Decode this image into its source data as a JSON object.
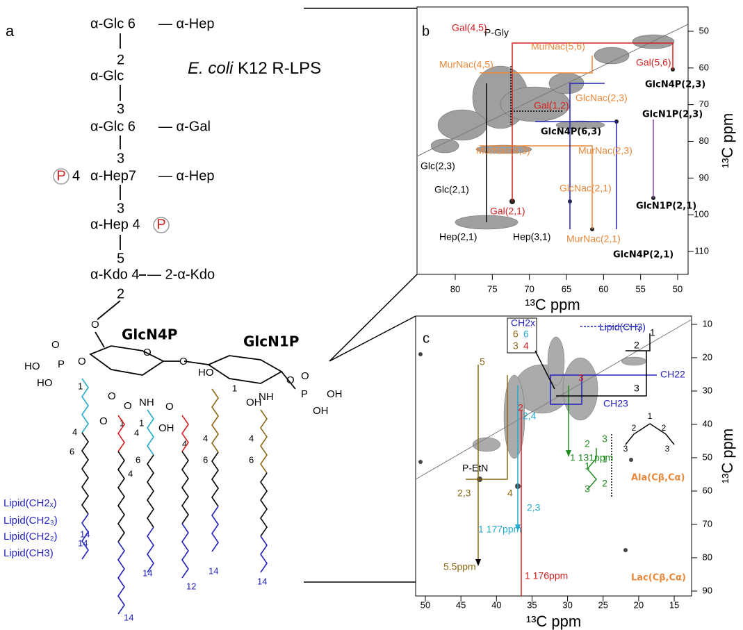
{
  "panel_a": {
    "label": "a",
    "title": {
      "italic": "E. coli",
      "rest": " K12 R-LPS"
    },
    "chain": [
      "α-Glc 6",
      "— α-Hep",
      "2",
      "α-Glc",
      "3",
      "α-Glc 6",
      "— α-Gal",
      "3",
      "P",
      "4",
      "α-Hep7",
      "— α-Hep",
      "3",
      "α-Hep 4",
      "P",
      "5",
      "α-Kdo 4",
      "— 2-α-Kdo",
      "2"
    ],
    "residues": [
      "GlcN4P",
      "GlcN1P"
    ],
    "atoms": [
      "O",
      "O",
      "HO",
      "P",
      "O",
      "HO",
      "O",
      "O",
      "HO",
      "NH",
      "NH",
      "O",
      "P",
      "OH",
      "OH",
      "O",
      "O",
      "O",
      "O",
      "O",
      "OH",
      "OH"
    ],
    "carbons": [
      "1",
      "1",
      "1",
      "1",
      "4",
      "6",
      "4",
      "4",
      "6",
      "4",
      "4",
      "6",
      "4",
      "6"
    ],
    "chain_ends": [
      "14",
      "14",
      "14",
      "12",
      "14",
      "14",
      "14"
    ],
    "lipids": [
      "Lipid(CH2ₓ)",
      "Lipid(CH2₃)",
      "Lipid(CH2₂)",
      "Lipid(CH3)"
    ]
  },
  "panel_b": {
    "label": "b",
    "axis_label": "¹³C ppm",
    "xticks": [
      80,
      75,
      70,
      65,
      60,
      55,
      50
    ],
    "yticks": [
      50,
      60,
      70,
      80,
      90,
      100,
      110
    ],
    "peaks": [
      "P-Gly",
      "Gal(4,5)",
      "MurNac(5,6)",
      "MurNac(4,5)",
      "Gal(5,6)",
      "GlcNac(2,3)",
      "GlcN4P(2,3)",
      "Gal(1,2)",
      "GlcN1P(2,3)",
      "GlcN4P(6,3)",
      "MurNac(4,3)",
      "MurNac(2,3)",
      "Glc(2,3)",
      "Glc(2,1)",
      "GlcNac(2,1)",
      "Gal(2,1)",
      "GlcN1P(2,1)",
      "MurNac(2,1)",
      "Hep(2,1)",
      "Hep(3,1)",
      "GlcN4P(2,1)"
    ]
  },
  "panel_c": {
    "label": "c",
    "axis_label": "¹³C ppm",
    "xticks": [
      50,
      45,
      40,
      35,
      30,
      25,
      20,
      15
    ],
    "yticks": [
      10,
      20,
      30,
      40,
      50,
      60,
      70,
      80,
      90
    ],
    "peaks": [
      "CH2x",
      "6",
      "6",
      "3",
      "4",
      "Lipid(CH3)",
      "1",
      "2",
      "3",
      "CH22",
      "CH23",
      "5",
      "3",
      "2",
      "2,4",
      "1 131ppm",
      "Ala(Cβ,Cα)",
      "P-EtN",
      "2,3",
      "4",
      "2,3",
      "1  177ppm",
      "5.5ppm",
      "1  176ppm",
      "Lac(Cβ,Cα)"
    ],
    "propyl": [
      "1",
      "2",
      "2",
      "3",
      "3"
    ],
    "zigzag": [
      "2",
      "3",
      "1",
      "1",
      "3",
      "2"
    ]
  }
}
